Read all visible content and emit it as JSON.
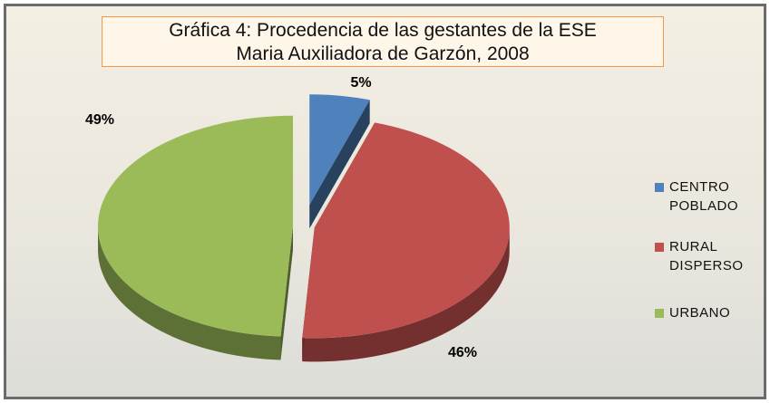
{
  "chart_data": {
    "type": "pie",
    "title": "Gráfica 4: Procedencia de las gestantes de la ESE Maria Auxiliadora de Garzón, 2008",
    "categories": [
      "CENTRO POBLADO",
      "RURAL DISPERSO",
      "URBANO"
    ],
    "values": [
      5,
      46,
      49
    ],
    "value_labels": [
      "5%",
      "46%",
      "49%"
    ],
    "colors": [
      "#4f81bd",
      "#c0504d",
      "#9bbb59"
    ],
    "legend": "right"
  }
}
